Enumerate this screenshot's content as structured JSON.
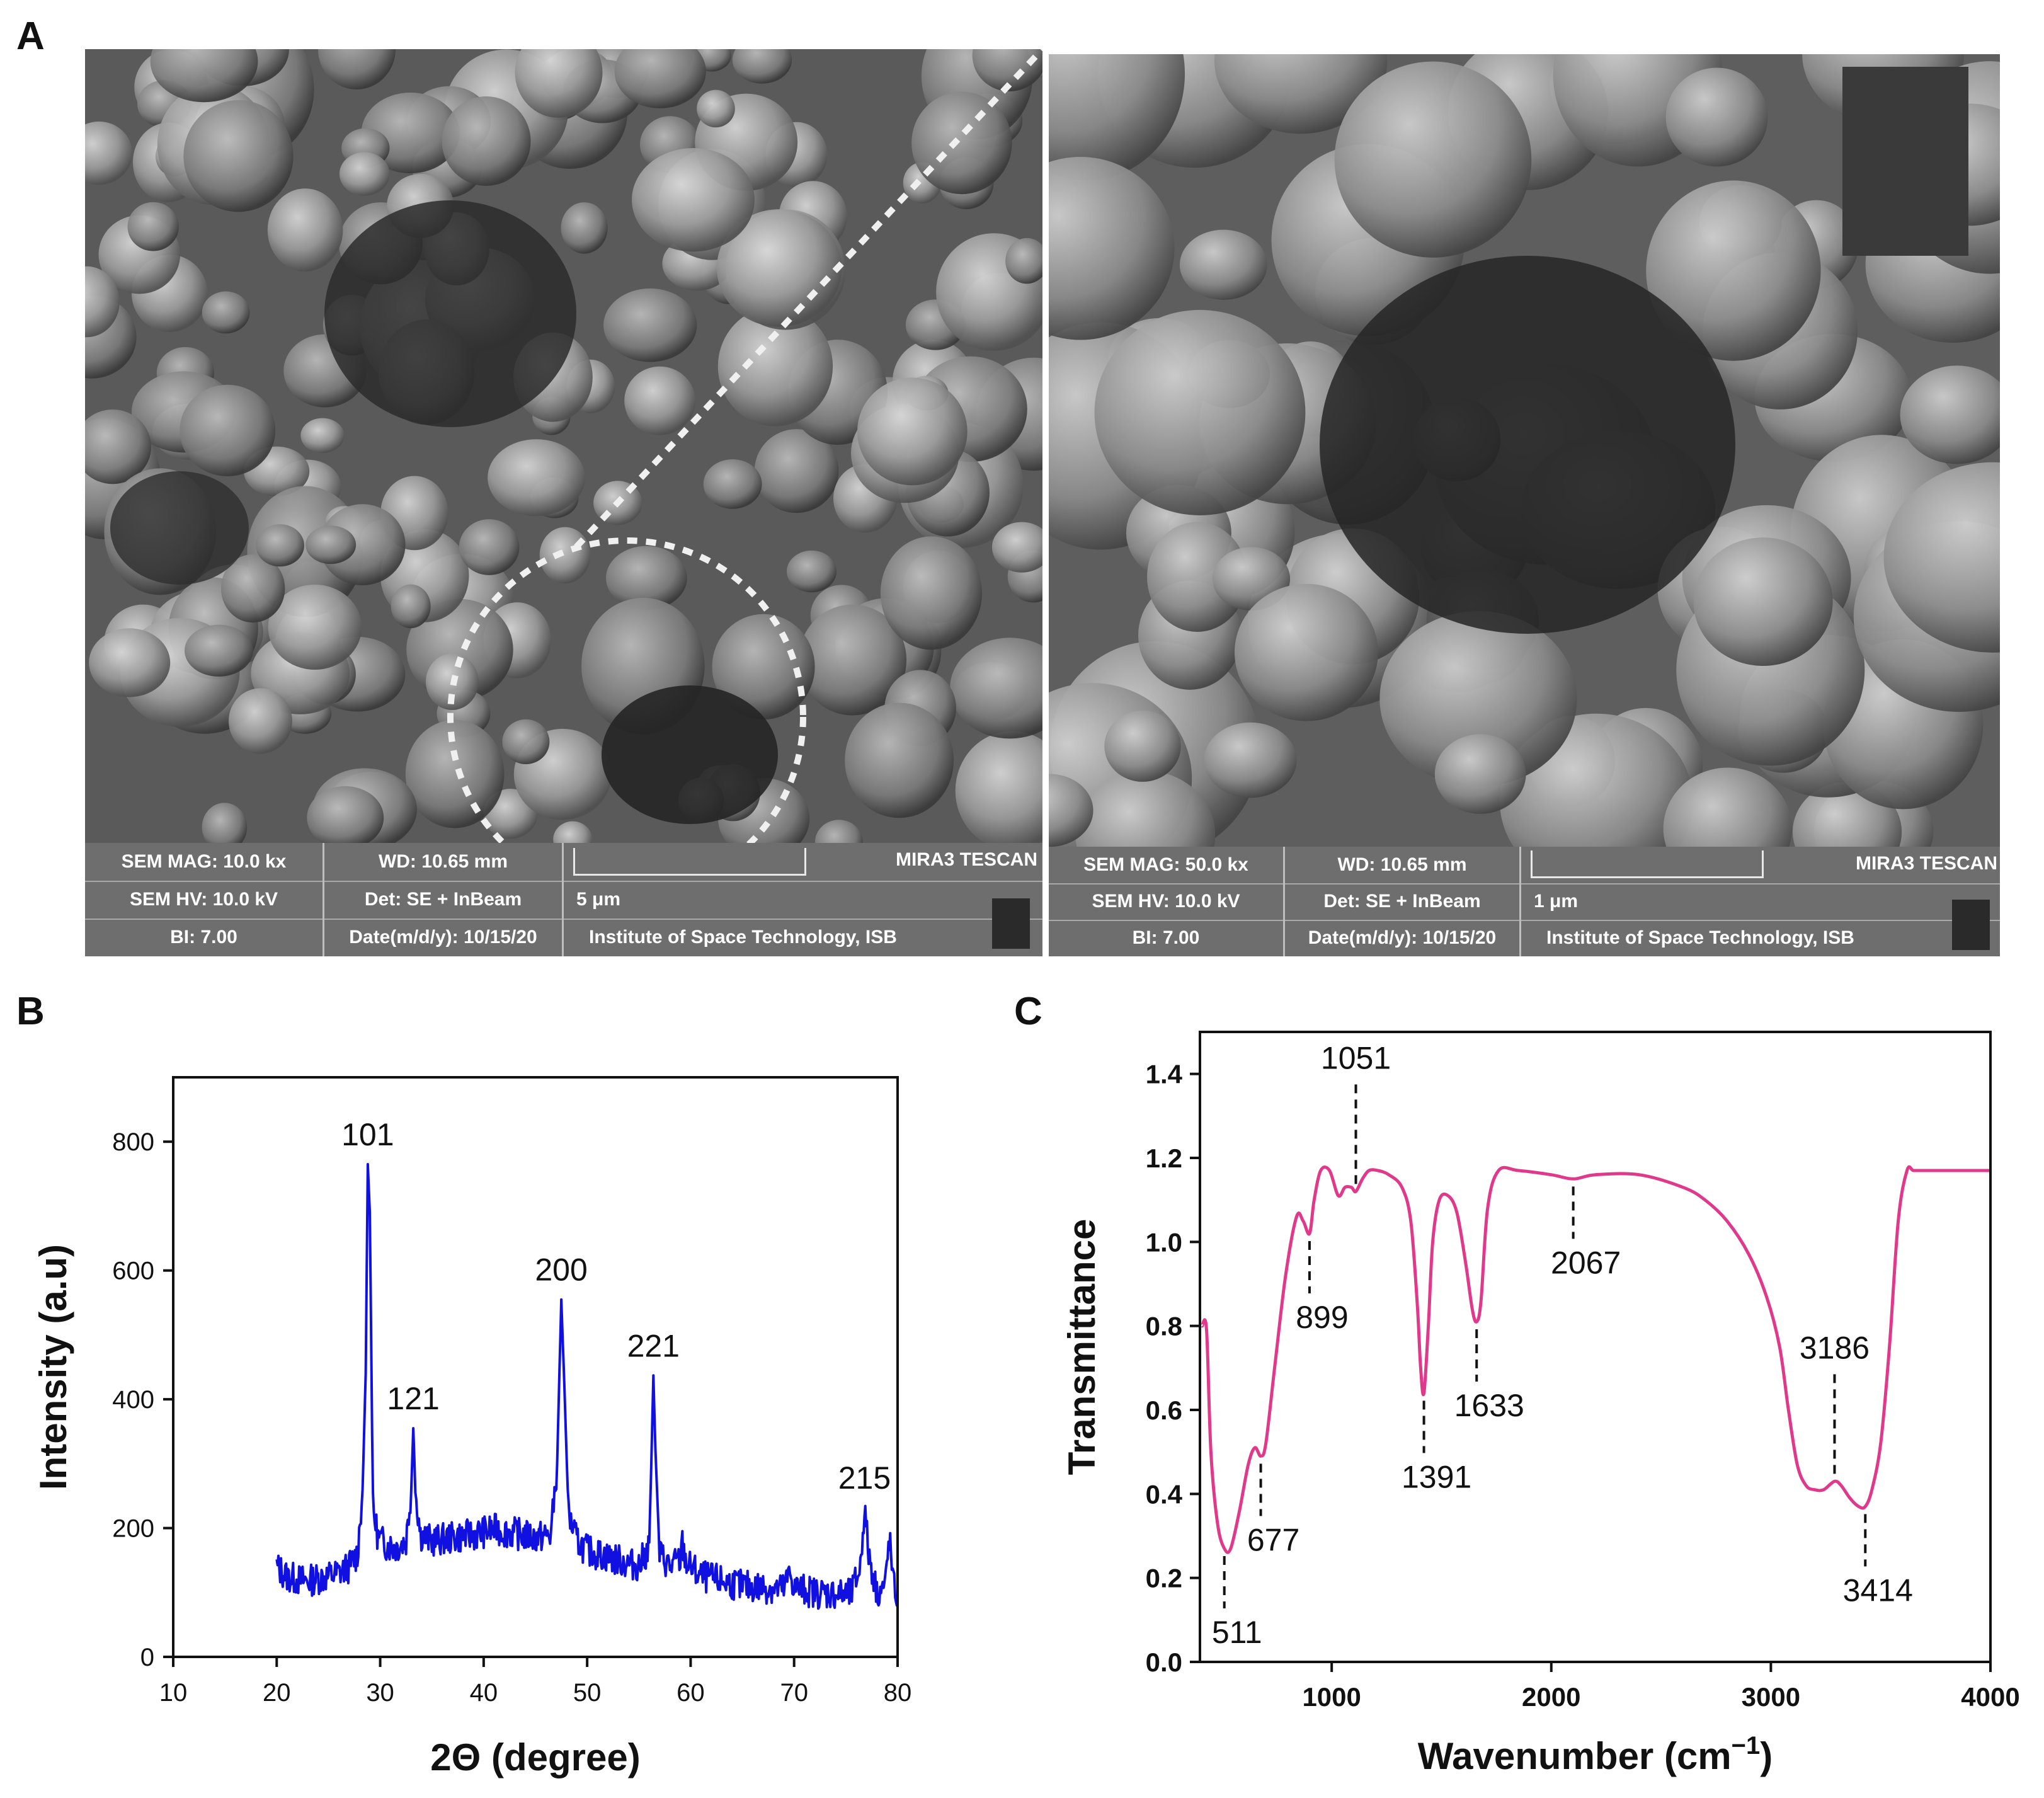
{
  "panels": {
    "a": "A",
    "b": "B",
    "c": "C"
  },
  "sem_left": {
    "mag": "SEM MAG: 10.0 kx",
    "wd": "WD: 10.65 mm",
    "hv": "SEM HV: 10.0 kV",
    "det": "Det: SE + InBeam",
    "bi": "BI: 7.00",
    "date": "Date(m/d/y): 10/15/20",
    "scale": "5 μm",
    "brand": "MIRA3 TESCAN",
    "inst": "Institute of Space Technology, ISB"
  },
  "sem_right": {
    "mag": "SEM MAG: 50.0 kx",
    "wd": "WD: 10.65 mm",
    "hv": "SEM HV: 10.0 kV",
    "det": "Det: SE + InBeam",
    "bi": "BI: 7.00",
    "date": "Date(m/d/y): 10/15/20",
    "scale": "1 μm",
    "brand": "MIRA3 TESCAN",
    "inst": "Institute of Space Technology, ISB"
  },
  "chart_data": [
    {
      "type": "line",
      "xlabel": "2Θ (degree)",
      "ylabel": "Intensity (a.u)",
      "xlim": [
        10,
        80
      ],
      "ylim": [
        0,
        900
      ],
      "xticks": [
        "10",
        "20",
        "30",
        "40",
        "50",
        "60",
        "70",
        "80"
      ],
      "yticks": [
        "0",
        "200",
        "400",
        "600",
        "800"
      ],
      "color": "#1010e0",
      "peaks": [
        {
          "label": "101",
          "x": 28.8,
          "y": 765
        },
        {
          "label": "121",
          "x": 33.2,
          "y": 355
        },
        {
          "label": "200",
          "x": 47.5,
          "y": 555
        },
        {
          "label": "221",
          "x": 56.4,
          "y": 437
        },
        {
          "label": "215",
          "x": 76.8,
          "y": 232
        }
      ],
      "series": [
        {
          "x": [
            20,
            21,
            22,
            23,
            24,
            25,
            26,
            27,
            27.8,
            28.3,
            28.6,
            28.8,
            29.0,
            29.3,
            29.8,
            30.5,
            31.5,
            32.5,
            33.0,
            33.2,
            33.4,
            33.9,
            35,
            37,
            39,
            41,
            43,
            45,
            46.5,
            47.1,
            47.5,
            47.8,
            48.2,
            49,
            50,
            51,
            52,
            53,
            54,
            55,
            56,
            56.2,
            56.4,
            56.6,
            57,
            58,
            59,
            59.2,
            59.6,
            61,
            63,
            65,
            67,
            69,
            69.6,
            70,
            72,
            74,
            75.5,
            76.4,
            76.8,
            77.2,
            78,
            78.8,
            79.2,
            79.6,
            80
          ],
          "y": [
            140,
            125,
            120,
            118,
            122,
            125,
            130,
            140,
            160,
            260,
            440,
            765,
            690,
            230,
            185,
            175,
            170,
            180,
            260,
            355,
            260,
            190,
            180,
            185,
            190,
            198,
            192,
            185,
            190,
            300,
            555,
            420,
            220,
            180,
            165,
            160,
            155,
            150,
            145,
            142,
            170,
            300,
            437,
            320,
            160,
            140,
            150,
            175,
            145,
            125,
            118,
            110,
            108,
            105,
            130,
            108,
            100,
            98,
            96,
            140,
            232,
            160,
            100,
            110,
            185,
            110,
            95
          ]
        }
      ]
    },
    {
      "type": "line",
      "xlabel": "Wavenumber (cm",
      "xlabel_sup": "−1",
      "xlabel_close": ")",
      "ylabel": "Transmittance",
      "xlim": [
        400,
        4000
      ],
      "ylim": [
        0,
        1.5
      ],
      "xticks": [
        "1000",
        "2000",
        "3000",
        "4000"
      ],
      "yticks": [
        "0.0",
        "0.2",
        "0.4",
        "0.6",
        "0.8",
        "1.0",
        "1.2",
        "1.4"
      ],
      "color": "#e0388a",
      "peaks": [
        {
          "label": "511",
          "x": 511,
          "y": 0.27,
          "side": "below"
        },
        {
          "label": "677",
          "x": 677,
          "y": 0.49,
          "side": "below"
        },
        {
          "label": "899",
          "x": 899,
          "y": 1.02,
          "side": "below"
        },
        {
          "label": "1051",
          "x": 1110,
          "y": 1.12,
          "side": "above"
        },
        {
          "label": "1391",
          "x": 1420,
          "y": 0.64,
          "side": "below"
        },
        {
          "label": "1633",
          "x": 1660,
          "y": 0.81,
          "side": "below"
        },
        {
          "label": "2067",
          "x": 2100,
          "y": 1.15,
          "side": "below"
        },
        {
          "label": "3186",
          "x": 3290,
          "y": 0.43,
          "side": "above"
        },
        {
          "label": "3414",
          "x": 3430,
          "y": 0.37,
          "side": "below"
        }
      ],
      "series": [
        {
          "x": [
            410,
            430,
            450,
            480,
            511,
            540,
            580,
            620,
            650,
            677,
            700,
            740,
            790,
            840,
            870,
            899,
            920,
            950,
            990,
            1030,
            1060,
            1090,
            1110,
            1140,
            1170,
            1210,
            1260,
            1320,
            1360,
            1390,
            1405,
            1420,
            1440,
            1460,
            1490,
            1530,
            1570,
            1610,
            1640,
            1660,
            1680,
            1710,
            1760,
            1850,
            2000,
            2100,
            2200,
            2400,
            2600,
            2700,
            2800,
            2900,
            2980,
            3040,
            3080,
            3120,
            3160,
            3200,
            3240,
            3290,
            3320,
            3360,
            3400,
            3430,
            3460,
            3500,
            3540,
            3580,
            3620,
            3650,
            3700,
            3800,
            4000
          ],
          "y": [
            0.8,
            0.79,
            0.5,
            0.33,
            0.27,
            0.27,
            0.36,
            0.47,
            0.51,
            0.49,
            0.52,
            0.7,
            0.92,
            1.06,
            1.05,
            1.02,
            1.1,
            1.17,
            1.17,
            1.11,
            1.13,
            1.13,
            1.12,
            1.15,
            1.17,
            1.17,
            1.16,
            1.13,
            1.05,
            0.85,
            0.7,
            0.64,
            0.8,
            1.0,
            1.1,
            1.11,
            1.07,
            0.95,
            0.84,
            0.81,
            0.86,
            1.08,
            1.17,
            1.17,
            1.16,
            1.15,
            1.16,
            1.16,
            1.13,
            1.1,
            1.05,
            0.97,
            0.87,
            0.75,
            0.6,
            0.47,
            0.42,
            0.41,
            0.41,
            0.43,
            0.42,
            0.39,
            0.37,
            0.37,
            0.41,
            0.52,
            0.75,
            1.05,
            1.17,
            1.17,
            1.17,
            1.17,
            1.17
          ]
        }
      ]
    }
  ]
}
